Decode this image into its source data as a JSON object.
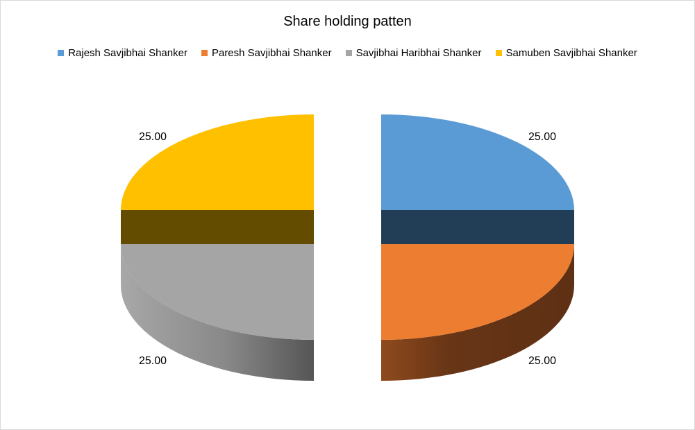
{
  "chart_data": {
    "type": "pie",
    "title": "Share holding patten",
    "legend_position": "top",
    "slices": [
      {
        "name": "Rajesh Savjibhai Shanker",
        "value": 25,
        "label": "25.00",
        "color": "#5b9bd5",
        "side_color": "#223e57"
      },
      {
        "name": "Paresh Savjibhai Shanker",
        "value": 25,
        "label": "25.00",
        "color": "#ed7d31",
        "side_color": "#683516"
      },
      {
        "name": "Savjibhai Haribhai Shanker",
        "value": 25,
        "label": "25.00",
        "color": "#a5a5a5",
        "side_color": "#6f6f6f"
      },
      {
        "name": "Samuben Savjibhai Shanker",
        "value": 25,
        "label": "25.00",
        "color": "#ffc000",
        "side_color": "#634b00"
      }
    ]
  }
}
